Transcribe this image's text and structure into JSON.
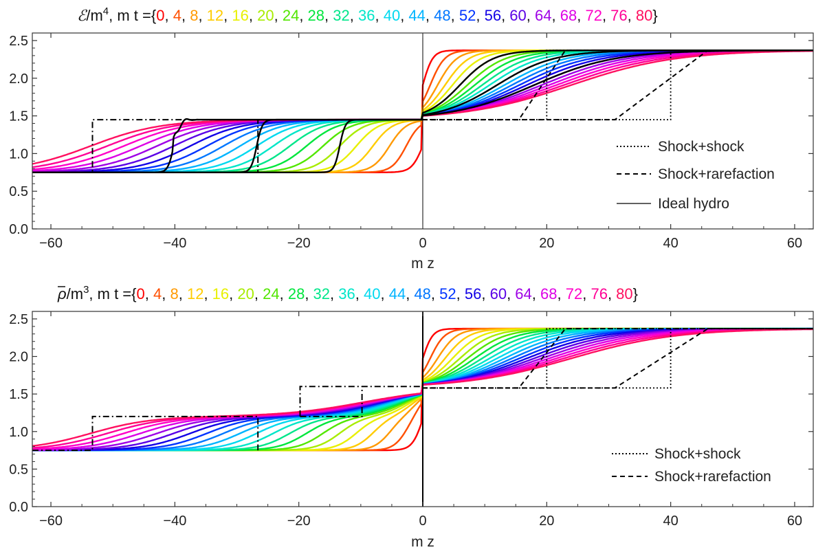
{
  "chart_data": [
    {
      "type": "line",
      "quantity": "energy",
      "title_symbol": "ℰ",
      "title_unit": "/m",
      "title_exp": "4",
      "title_mid": ", m t ={",
      "title_end": "}",
      "xlabel": "m z",
      "ylabel": "",
      "xlim": [
        -63,
        63
      ],
      "ylim": [
        0,
        2.6
      ],
      "xticks": [
        "−60",
        "−40",
        "−20",
        "0",
        "20",
        "40",
        "60"
      ],
      "yticks": [
        "0.0",
        "0.5",
        "1.0",
        "1.5",
        "2.0",
        "2.5"
      ],
      "grid": false,
      "legend_position": "bottom-right",
      "legend": [
        {
          "label": "Shock+shock",
          "style": "dotted"
        },
        {
          "label": "Shock+rarefaction",
          "style": "dashed"
        },
        {
          "label": "Ideal hydro",
          "style": "solid"
        }
      ],
      "profile": {
        "left": 0.75,
        "right": 2.37,
        "center": 1.45,
        "kind": "energy"
      },
      "series_times": [
        0,
        4,
        8,
        12,
        16,
        20,
        24,
        28,
        32,
        36,
        40,
        44,
        48,
        52,
        56,
        60,
        64,
        68,
        72,
        76,
        80
      ],
      "ideal_hydro_times": [
        20,
        40,
        60
      ]
    },
    {
      "type": "line",
      "quantity": "density",
      "title_symbol": "ρ",
      "title_unit": "/m",
      "title_exp": "3",
      "title_mid": ", m t ={",
      "title_end": "}",
      "xlabel": "m z",
      "ylabel": "",
      "xlim": [
        -63,
        63
      ],
      "ylim": [
        0,
        2.6
      ],
      "xticks": [
        "−60",
        "−40",
        "−20",
        "0",
        "20",
        "40",
        "60"
      ],
      "yticks": [
        "0.0",
        "0.5",
        "1.0",
        "1.5",
        "2.0",
        "2.5"
      ],
      "grid": false,
      "legend_position": "bottom-right",
      "legend": [
        {
          "label": "Shock+shock",
          "style": "dotted"
        },
        {
          "label": "Shock+rarefaction",
          "style": "dashed"
        }
      ],
      "profile": {
        "left": 0.75,
        "right": 2.37,
        "center": 1.58,
        "kind": "density"
      },
      "series_times": [
        0,
        4,
        8,
        12,
        16,
        20,
        24,
        28,
        32,
        36,
        40,
        44,
        48,
        52,
        56,
        60,
        64,
        68,
        72,
        76,
        80
      ],
      "ideal_hydro_times": []
    }
  ],
  "time_labels": [
    "0",
    "4",
    "8",
    "12",
    "16",
    "20",
    "24",
    "28",
    "32",
    "36",
    "40",
    "44",
    "48",
    "52",
    "56",
    "60",
    "64",
    "68",
    "72",
    "76",
    "80"
  ],
  "time_colors": [
    "#ff0000",
    "#ff4f00",
    "#ff9900",
    "#ffcc00",
    "#e8f000",
    "#a8ec00",
    "#52e600",
    "#00e63c",
    "#00e68a",
    "#00e6c8",
    "#00d9ef",
    "#00b4ff",
    "#0077ff",
    "#0033ff",
    "#1200e6",
    "#5a00e6",
    "#9e00e6",
    "#dd00e6",
    "#ff00c8",
    "#ff0096",
    "#ff1060"
  ]
}
